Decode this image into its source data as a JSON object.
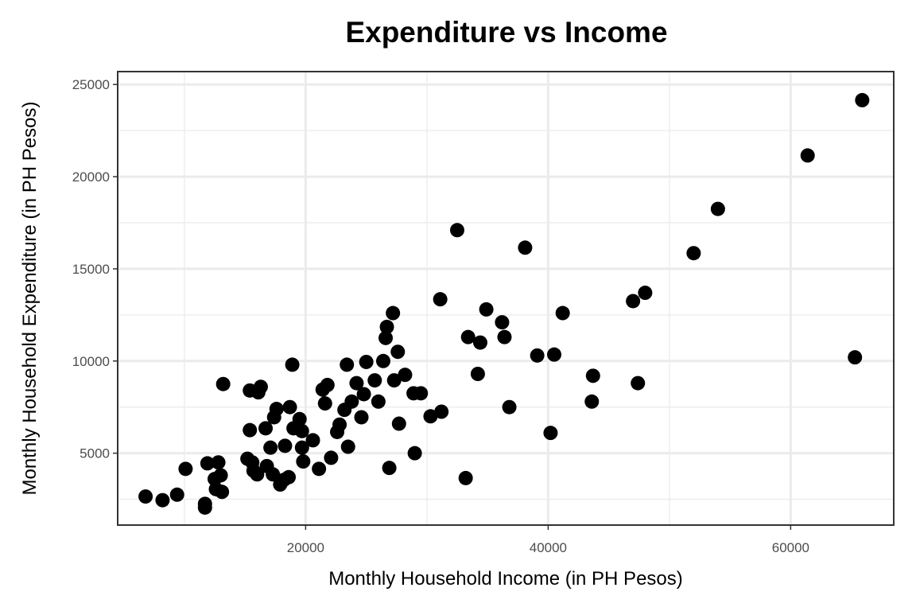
{
  "chart_data": {
    "type": "scatter",
    "title": "Expenditure vs Income",
    "xlabel": "Monthly Household Income (in PH Pesos)",
    "ylabel": "Monthly Household Expenditure (in PH Pesos)",
    "xlim": [
      4500,
      68500
    ],
    "ylim": [
      1100,
      25700
    ],
    "x_ticks": [
      20000,
      40000,
      60000
    ],
    "x_tick_labels": [
      "20000",
      "40000",
      "60000"
    ],
    "y_ticks": [
      5000,
      10000,
      15000,
      20000,
      25000
    ],
    "y_tick_labels": [
      "5000",
      "10000",
      "15000",
      "20000",
      "25000"
    ],
    "x_minor_ticks": [
      10000,
      30000,
      50000
    ],
    "y_minor_ticks": [
      2500,
      7500,
      12500,
      17500,
      22500
    ],
    "grid": true,
    "legend": "none",
    "point_color": "#000000",
    "grid_color": "#ebebeb",
    "panel_border_color": "#333333",
    "series": [
      {
        "points": [
          [
            6800,
            2650
          ],
          [
            8200,
            2450
          ],
          [
            9400,
            2750
          ],
          [
            10100,
            4150
          ],
          [
            11700,
            2250
          ],
          [
            11700,
            2050
          ],
          [
            11900,
            4450
          ],
          [
            12500,
            3600
          ],
          [
            12600,
            3050
          ],
          [
            12800,
            4500
          ],
          [
            13000,
            3800
          ],
          [
            13100,
            2900
          ],
          [
            13200,
            8750
          ],
          [
            15200,
            4700
          ],
          [
            15400,
            8400
          ],
          [
            15400,
            6250
          ],
          [
            15600,
            4500
          ],
          [
            15700,
            4050
          ],
          [
            16000,
            3850
          ],
          [
            16100,
            8300
          ],
          [
            16300,
            8600
          ],
          [
            16700,
            6350
          ],
          [
            16800,
            4300
          ],
          [
            17100,
            5300
          ],
          [
            17300,
            3850
          ],
          [
            17400,
            6950
          ],
          [
            17600,
            7400
          ],
          [
            17900,
            3300
          ],
          [
            18200,
            3550
          ],
          [
            18300,
            5400
          ],
          [
            18600,
            3700
          ],
          [
            18700,
            7500
          ],
          [
            18900,
            9800
          ],
          [
            19000,
            6350
          ],
          [
            19500,
            6850
          ],
          [
            19700,
            6200
          ],
          [
            19700,
            5300
          ],
          [
            19800,
            4550
          ],
          [
            20600,
            5700
          ],
          [
            21100,
            4150
          ],
          [
            21400,
            8450
          ],
          [
            21600,
            7700
          ],
          [
            21800,
            8700
          ],
          [
            22100,
            4750
          ],
          [
            22600,
            6150
          ],
          [
            22800,
            6550
          ],
          [
            23200,
            7350
          ],
          [
            23400,
            9800
          ],
          [
            23500,
            5350
          ],
          [
            23800,
            7800
          ],
          [
            24200,
            8800
          ],
          [
            24600,
            6950
          ],
          [
            24800,
            8200
          ],
          [
            25000,
            9950
          ],
          [
            25700,
            8950
          ],
          [
            26000,
            7800
          ],
          [
            26400,
            10000
          ],
          [
            26600,
            11250
          ],
          [
            26700,
            11850
          ],
          [
            26900,
            4200
          ],
          [
            27200,
            12600
          ],
          [
            27300,
            8950
          ],
          [
            27600,
            10500
          ],
          [
            27700,
            6600
          ],
          [
            28200,
            9250
          ],
          [
            28900,
            8250
          ],
          [
            29000,
            5000
          ],
          [
            29500,
            8250
          ],
          [
            30300,
            7000
          ],
          [
            31100,
            13350
          ],
          [
            31200,
            7250
          ],
          [
            32500,
            17100
          ],
          [
            33200,
            3650
          ],
          [
            33400,
            11300
          ],
          [
            34200,
            9300
          ],
          [
            34400,
            11000
          ],
          [
            34900,
            12800
          ],
          [
            36200,
            12100
          ],
          [
            36400,
            11300
          ],
          [
            36800,
            7500
          ],
          [
            38100,
            16150
          ],
          [
            39100,
            10300
          ],
          [
            40200,
            6100
          ],
          [
            40500,
            10350
          ],
          [
            41200,
            12600
          ],
          [
            43600,
            7800
          ],
          [
            43700,
            9200
          ],
          [
            47000,
            13250
          ],
          [
            47400,
            8800
          ],
          [
            48000,
            13700
          ],
          [
            52000,
            15850
          ],
          [
            54000,
            18250
          ],
          [
            61400,
            21150
          ],
          [
            65300,
            10200
          ],
          [
            65900,
            24150
          ]
        ]
      }
    ]
  }
}
